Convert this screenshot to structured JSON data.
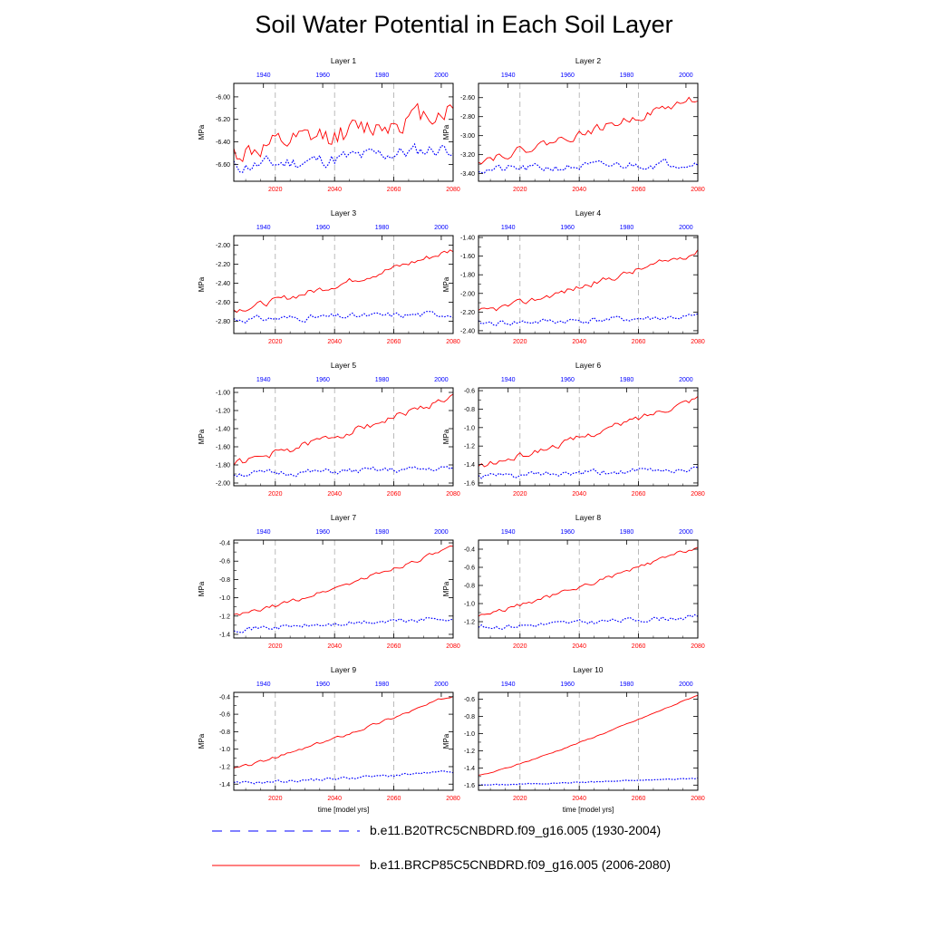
{
  "title": "Soil Water Potential in Each Soil Layer",
  "legend": [
    {
      "label": "b.e11.B20TRC5CNBDRD.f09_g16.005 (1930-2004)",
      "color": "#0000ff",
      "style": "dashed"
    },
    {
      "label": "b.e11.BRCP85C5CNBDRD.f09_g16.005 (2006-2080)",
      "color": "#ff0000",
      "style": "solid"
    }
  ],
  "chart_data": [
    {
      "type": "line",
      "title": "Layer 1",
      "ylabel": "MPa",
      "xlabel": "",
      "ylim": [
        -6.75,
        -5.88
      ],
      "yticks": [
        -6.6,
        -6.4,
        -6.2,
        -6.0
      ],
      "ytick_labels": [
        "-6.60",
        "-6.40",
        "-6.20",
        "-6.00"
      ],
      "top_axis": {
        "range": [
          1930,
          2004
        ],
        "ticks": [
          1940,
          1960,
          1980,
          2000
        ],
        "color": "#0000ff"
      },
      "bottom_axis": {
        "range": [
          2006,
          2080
        ],
        "ticks": [
          2020,
          2040,
          2060,
          2080
        ],
        "color": "#ff0000"
      },
      "series": [
        {
          "name": "b.e11.B20TRC5CNBDRD.f09_g16.005 (1930-2004)",
          "color": "#0000ff",
          "style": "dotted",
          "start": -6.62,
          "end": -6.45,
          "noise": 0.06,
          "seed": 11
        },
        {
          "name": "b.e11.BRCP85C5CNBDRD.f09_g16.005 (2006-2080)",
          "color": "#ff0000",
          "style": "solid",
          "start": -6.5,
          "end": -6.1,
          "noise": 0.09,
          "seed": 12
        }
      ]
    },
    {
      "type": "line",
      "title": "Layer 2",
      "ylabel": "MPa",
      "xlabel": "",
      "ylim": [
        -3.48,
        -2.45
      ],
      "yticks": [
        -3.4,
        -3.2,
        -3.0,
        -2.8,
        -2.6
      ],
      "ytick_labels": [
        "-3.40",
        "-3.20",
        "-3.00",
        "-2.80",
        "-2.60"
      ],
      "top_axis": {
        "range": [
          1930,
          2004
        ],
        "ticks": [
          1940,
          1960,
          1980,
          2000
        ],
        "color": "#0000ff"
      },
      "bottom_axis": {
        "range": [
          2006,
          2080
        ],
        "ticks": [
          2020,
          2040,
          2060,
          2080
        ],
        "color": "#ff0000"
      },
      "series": [
        {
          "name": "b.e11.B20TRC5CNBDRD.f09_g16.005 (1930-2004)",
          "color": "#0000ff",
          "style": "dotted",
          "start": -3.36,
          "end": -3.28,
          "noise": 0.04,
          "seed": 21
        },
        {
          "name": "b.e11.BRCP85C5CNBDRD.f09_g16.005 (2006-2080)",
          "color": "#ff0000",
          "style": "solid",
          "start": -3.25,
          "end": -2.6,
          "noise": 0.04,
          "seed": 22
        }
      ]
    },
    {
      "type": "line",
      "title": "Layer 3",
      "ylabel": "MPa",
      "xlabel": "",
      "ylim": [
        -2.93,
        -1.9
      ],
      "yticks": [
        -2.8,
        -2.6,
        -2.4,
        -2.2,
        -2.0
      ],
      "ytick_labels": [
        "-2.80",
        "-2.60",
        "-2.40",
        "-2.20",
        "-2.00"
      ],
      "top_axis": {
        "range": [
          1930,
          2004
        ],
        "ticks": [
          1940,
          1960,
          1980,
          2000
        ],
        "color": "#0000ff"
      },
      "bottom_axis": {
        "range": [
          2006,
          2080
        ],
        "ticks": [
          2020,
          2040,
          2060,
          2080
        ],
        "color": "#ff0000"
      },
      "series": [
        {
          "name": "b.e11.B20TRC5CNBDRD.f09_g16.005 (1930-2004)",
          "color": "#0000ff",
          "style": "dotted",
          "start": -2.78,
          "end": -2.72,
          "noise": 0.03,
          "seed": 31
        },
        {
          "name": "b.e11.BRCP85C5CNBDRD.f09_g16.005 (2006-2080)",
          "color": "#ff0000",
          "style": "solid",
          "start": -2.68,
          "end": -2.05,
          "noise": 0.03,
          "seed": 32
        }
      ]
    },
    {
      "type": "line",
      "title": "Layer 4",
      "ylabel": "MPa",
      "xlabel": "",
      "ylim": [
        -2.43,
        -1.38
      ],
      "yticks": [
        -2.4,
        -2.2,
        -2.0,
        -1.8,
        -1.6,
        -1.4
      ],
      "ytick_labels": [
        "-2.40",
        "-2.20",
        "-2.00",
        "-1.80",
        "-1.60",
        "-1.40"
      ],
      "top_axis": {
        "range": [
          1930,
          2004
        ],
        "ticks": [
          1940,
          1960,
          1980,
          2000
        ],
        "color": "#0000ff"
      },
      "bottom_axis": {
        "range": [
          2006,
          2080
        ],
        "ticks": [
          2020,
          2040,
          2060,
          2080
        ],
        "color": "#ff0000"
      },
      "series": [
        {
          "name": "b.e11.B20TRC5CNBDRD.f09_g16.005 (1930-2004)",
          "color": "#0000ff",
          "style": "dotted",
          "start": -2.32,
          "end": -2.25,
          "noise": 0.03,
          "seed": 41
        },
        {
          "name": "b.e11.BRCP85C5CNBDRD.f09_g16.005 (2006-2080)",
          "color": "#ff0000",
          "style": "solid",
          "start": -2.2,
          "end": -1.55,
          "noise": 0.03,
          "seed": 42
        }
      ]
    },
    {
      "type": "line",
      "title": "Layer 5",
      "ylabel": "MPa",
      "xlabel": "",
      "ylim": [
        -2.03,
        -0.95
      ],
      "yticks": [
        -2.0,
        -1.8,
        -1.6,
        -1.4,
        -1.2,
        -1.0
      ],
      "ytick_labels": [
        "-2.00",
        "-1.80",
        "-1.60",
        "-1.40",
        "-1.20",
        "-1.00"
      ],
      "top_axis": {
        "range": [
          1930,
          2004
        ],
        "ticks": [
          1940,
          1960,
          1980,
          2000
        ],
        "color": "#0000ff"
      },
      "bottom_axis": {
        "range": [
          2006,
          2080
        ],
        "ticks": [
          2020,
          2040,
          2060,
          2080
        ],
        "color": "#ff0000"
      },
      "series": [
        {
          "name": "b.e11.B20TRC5CNBDRD.f09_g16.005 (1930-2004)",
          "color": "#0000ff",
          "style": "dotted",
          "start": -1.9,
          "end": -1.84,
          "noise": 0.03,
          "seed": 51
        },
        {
          "name": "b.e11.BRCP85C5CNBDRD.f09_g16.005 (2006-2080)",
          "color": "#ff0000",
          "style": "solid",
          "start": -1.78,
          "end": -1.05,
          "noise": 0.035,
          "seed": 52
        }
      ]
    },
    {
      "type": "line",
      "title": "Layer 6",
      "ylabel": "MPa",
      "xlabel": "",
      "ylim": [
        -1.63,
        -0.57
      ],
      "yticks": [
        -1.6,
        -1.4,
        -1.2,
        -1.0,
        -0.8,
        -0.6
      ],
      "ytick_labels": [
        "-1.6",
        "-1.4",
        "-1.2",
        "-1.0",
        "-0.8",
        "-0.6"
      ],
      "top_axis": {
        "range": [
          1930,
          2004
        ],
        "ticks": [
          1940,
          1960,
          1980,
          2000
        ],
        "color": "#0000ff"
      },
      "bottom_axis": {
        "range": [
          2006,
          2080
        ],
        "ticks": [
          2020,
          2040,
          2060,
          2080
        ],
        "color": "#ff0000"
      },
      "series": [
        {
          "name": "b.e11.B20TRC5CNBDRD.f09_g16.005 (1930-2004)",
          "color": "#0000ff",
          "style": "dotted",
          "start": -1.53,
          "end": -1.45,
          "noise": 0.03,
          "seed": 61
        },
        {
          "name": "b.e11.BRCP85C5CNBDRD.f09_g16.005 (2006-2080)",
          "color": "#ff0000",
          "style": "solid",
          "start": -1.42,
          "end": -0.67,
          "noise": 0.03,
          "seed": 62
        }
      ]
    },
    {
      "type": "line",
      "title": "Layer 7",
      "ylabel": "MPa",
      "xlabel": "",
      "ylim": [
        -1.44,
        -0.37
      ],
      "yticks": [
        -1.4,
        -1.2,
        -1.0,
        -0.8,
        -0.6,
        -0.4
      ],
      "ytick_labels": [
        "-1.4",
        "-1.2",
        "-1.0",
        "-0.8",
        "-0.6",
        "-0.4"
      ],
      "top_axis": {
        "range": [
          1930,
          2004
        ],
        "ticks": [
          1940,
          1960,
          1980,
          2000
        ],
        "color": "#0000ff"
      },
      "bottom_axis": {
        "range": [
          2006,
          2080
        ],
        "ticks": [
          2020,
          2040,
          2060,
          2080
        ],
        "color": "#ff0000"
      },
      "series": [
        {
          "name": "b.e11.B20TRC5CNBDRD.f09_g16.005 (1930-2004)",
          "color": "#0000ff",
          "style": "dotted",
          "start": -1.34,
          "end": -1.22,
          "noise": 0.025,
          "seed": 71
        },
        {
          "name": "b.e11.BRCP85C5CNBDRD.f09_g16.005 (2006-2080)",
          "color": "#ff0000",
          "style": "solid",
          "start": -1.2,
          "end": -0.45,
          "noise": 0.02,
          "seed": 72
        }
      ]
    },
    {
      "type": "line",
      "title": "Layer 8",
      "ylabel": "MPa",
      "xlabel": "",
      "ylim": [
        -1.38,
        -0.3
      ],
      "yticks": [
        -1.2,
        -1.0,
        -0.8,
        -0.6,
        -0.4
      ],
      "ytick_labels": [
        "-1.2",
        "-1.0",
        "-0.8",
        "-0.6",
        "-0.4"
      ],
      "top_axis": {
        "range": [
          1930,
          2004
        ],
        "ticks": [
          1940,
          1960,
          1980,
          2000
        ],
        "color": "#0000ff"
      },
      "bottom_axis": {
        "range": [
          2006,
          2080
        ],
        "ticks": [
          2020,
          2040,
          2060,
          2080
        ],
        "color": "#ff0000"
      },
      "series": [
        {
          "name": "b.e11.B20TRC5CNBDRD.f09_g16.005 (1930-2004)",
          "color": "#0000ff",
          "style": "dotted",
          "start": -1.26,
          "end": -1.14,
          "noise": 0.025,
          "seed": 81
        },
        {
          "name": "b.e11.BRCP85C5CNBDRD.f09_g16.005 (2006-2080)",
          "color": "#ff0000",
          "style": "solid",
          "start": -1.13,
          "end": -0.37,
          "noise": 0.02,
          "seed": 82
        }
      ]
    },
    {
      "type": "line",
      "title": "Layer 9",
      "ylabel": "MPa",
      "xlabel": "time [model yrs]",
      "ylim": [
        -1.47,
        -0.35
      ],
      "yticks": [
        -1.4,
        -1.2,
        -1.0,
        -0.8,
        -0.6,
        -0.4
      ],
      "ytick_labels": [
        "-1.4",
        "-1.2",
        "-1.0",
        "-0.8",
        "-0.6",
        "-0.4"
      ],
      "top_axis": {
        "range": [
          1930,
          2004
        ],
        "ticks": [
          1940,
          1960,
          1980,
          2000
        ],
        "color": "#0000ff"
      },
      "bottom_axis": {
        "range": [
          2006,
          2080
        ],
        "ticks": [
          2020,
          2040,
          2060,
          2080
        ],
        "color": "#ff0000"
      },
      "series": [
        {
          "name": "b.e11.B20TRC5CNBDRD.f09_g16.005 (1930-2004)",
          "color": "#0000ff",
          "style": "dotted",
          "start": -1.39,
          "end": -1.26,
          "noise": 0.015,
          "seed": 91
        },
        {
          "name": "b.e11.BRCP85C5CNBDRD.f09_g16.005 (2006-2080)",
          "color": "#ff0000",
          "style": "solid",
          "start": -1.22,
          "end": -0.38,
          "noise": 0.015,
          "seed": 92
        }
      ]
    },
    {
      "type": "line",
      "title": "Layer 10",
      "ylabel": "MPa",
      "xlabel": "time [model yrs]",
      "ylim": [
        -1.66,
        -0.52
      ],
      "yticks": [
        -1.6,
        -1.4,
        -1.2,
        -1.0,
        -0.8,
        -0.6
      ],
      "ytick_labels": [
        "-1.6",
        "-1.4",
        "-1.2",
        "-1.0",
        "-0.8",
        "-0.6"
      ],
      "top_axis": {
        "range": [
          1930,
          2004
        ],
        "ticks": [
          1940,
          1960,
          1980,
          2000
        ],
        "color": "#0000ff"
      },
      "bottom_axis": {
        "range": [
          2006,
          2080
        ],
        "ticks": [
          2020,
          2040,
          2060,
          2080
        ],
        "color": "#ff0000"
      },
      "series": [
        {
          "name": "b.e11.B20TRC5CNBDRD.f09_g16.005 (1930-2004)",
          "color": "#0000ff",
          "style": "dotted",
          "start": -1.6,
          "end": -1.52,
          "noise": 0.006,
          "seed": 101
        },
        {
          "name": "b.e11.BRCP85C5CNBDRD.f09_g16.005 (2006-2080)",
          "color": "#ff0000",
          "style": "solid",
          "start": -1.49,
          "end": -0.55,
          "noise": 0.006,
          "seed": 102
        }
      ]
    }
  ]
}
